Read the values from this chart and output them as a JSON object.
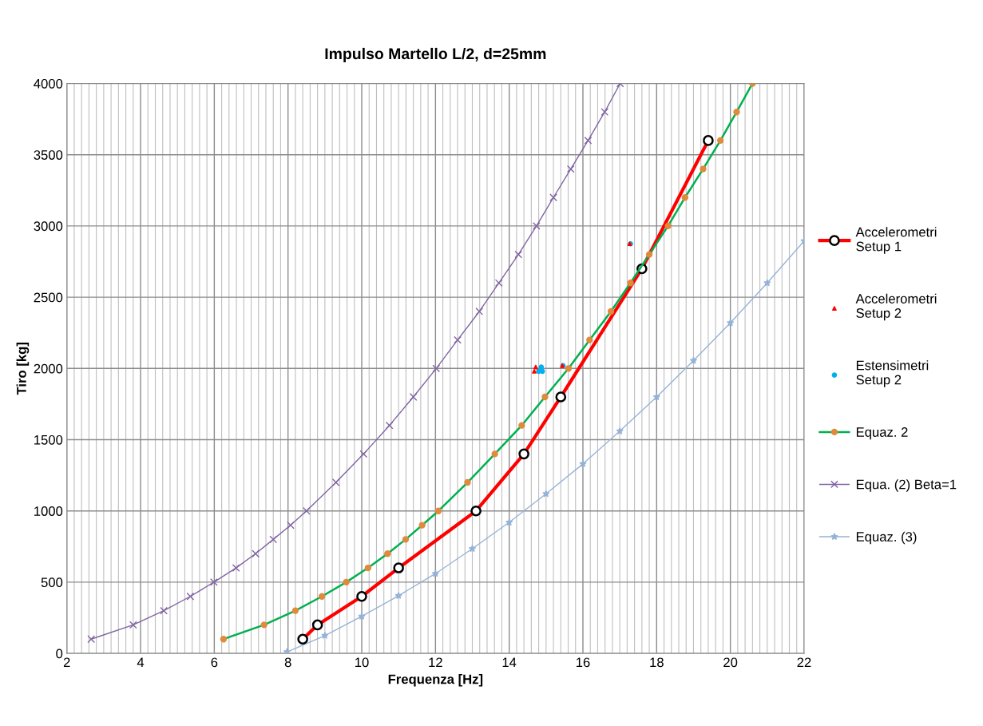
{
  "chart_data": {
    "type": "line",
    "title": "Impulso Martello L/2, d=25mm",
    "xlabel": "Frequenza [Hz]",
    "ylabel": "Tiro [kg]",
    "xlim": [
      2,
      22
    ],
    "ylim": [
      0,
      4000
    ],
    "xticks": [
      2,
      {
        "value": 2.2,
        "label": null
      },
      {
        "value": 2.4,
        "label": null
      },
      {
        "value": 2.6,
        "label": null
      },
      {
        "value": 2.8,
        "label": null
      },
      {
        "value": 3,
        "label": null
      },
      {
        "value": 3.2,
        "label": null
      },
      {
        "value": 3.4,
        "label": null
      },
      {
        "value": 3.6,
        "label": null
      },
      {
        "value": 3.8,
        "label": null
      },
      4,
      {
        "value": 4.2,
        "label": null
      },
      {
        "value": 4.4,
        "label": null
      },
      {
        "value": 4.6,
        "label": null
      },
      {
        "value": 4.8,
        "label": null
      },
      {
        "value": 5,
        "label": null
      },
      {
        "value": 5.2,
        "label": null
      },
      {
        "value": 5.4,
        "label": null
      },
      {
        "value": 5.6,
        "label": null
      },
      {
        "value": 5.8,
        "label": null
      },
      6,
      {
        "value": 6.2,
        "label": null
      },
      {
        "value": 6.4,
        "label": null
      },
      {
        "value": 6.6,
        "label": null
      },
      {
        "value": 6.8,
        "label": null
      },
      {
        "value": 7,
        "label": null
      },
      {
        "value": 7.2,
        "label": null
      },
      {
        "value": 7.4,
        "label": null
      },
      {
        "value": 7.6,
        "label": null
      },
      {
        "value": 7.8,
        "label": null
      },
      8,
      {
        "value": 8.2,
        "label": null
      },
      {
        "value": 8.4,
        "label": null
      },
      {
        "value": 8.6,
        "label": null
      },
      {
        "value": 8.8,
        "label": null
      },
      {
        "value": 9,
        "label": null
      },
      {
        "value": 9.2,
        "label": null
      },
      {
        "value": 9.4,
        "label": null
      },
      {
        "value": 9.6,
        "label": null
      },
      {
        "value": 9.8,
        "label": null
      },
      10,
      {
        "value": 10.2,
        "label": null
      },
      {
        "value": 10.4,
        "label": null
      },
      {
        "value": 10.6,
        "label": null
      },
      {
        "value": 10.8,
        "label": null
      },
      {
        "value": 11,
        "label": null
      },
      {
        "value": 11.2,
        "label": null
      },
      {
        "value": 11.4,
        "label": null
      },
      {
        "value": 11.6,
        "label": null
      },
      {
        "value": 11.8,
        "label": null
      },
      12,
      {
        "value": 12.2,
        "label": null
      },
      {
        "value": 12.4,
        "label": null
      },
      {
        "value": 12.6,
        "label": null
      },
      {
        "value": 12.8,
        "label": null
      },
      {
        "value": 13,
        "label": null
      },
      {
        "value": 13.2,
        "label": null
      },
      {
        "value": 13.4,
        "label": null
      },
      {
        "value": 13.6,
        "label": null
      },
      {
        "value": 13.8,
        "label": null
      },
      14,
      {
        "value": 14.2,
        "label": null
      },
      {
        "value": 14.4,
        "label": null
      },
      {
        "value": 14.6,
        "label": null
      },
      {
        "value": 14.8,
        "label": null
      },
      {
        "value": 15,
        "label": null
      },
      {
        "value": 15.2,
        "label": null
      },
      {
        "value": 15.4,
        "label": null
      },
      {
        "value": 15.6,
        "label": null
      },
      {
        "value": 15.8,
        "label": null
      },
      16,
      {
        "value": 16.2,
        "label": null
      },
      {
        "value": 16.4,
        "label": null
      },
      {
        "value": 16.6,
        "label": null
      },
      {
        "value": 16.8,
        "label": null
      },
      {
        "value": 17,
        "label": null
      },
      {
        "value": 17.2,
        "label": null
      },
      {
        "value": 17.4,
        "label": null
      },
      {
        "value": 17.6,
        "label": null
      },
      {
        "value": 17.8,
        "label": null
      },
      18,
      {
        "value": 18.2,
        "label": null
      },
      {
        "value": 18.4,
        "label": null
      },
      {
        "value": 18.6,
        "label": null
      },
      {
        "value": 18.8,
        "label": null
      },
      {
        "value": 19,
        "label": null
      },
      {
        "value": 19.2,
        "label": null
      },
      {
        "value": 19.4,
        "label": null
      },
      {
        "value": 19.6,
        "label": null
      },
      {
        "value": 19.8,
        "label": null
      },
      20,
      {
        "value": 20.2,
        "label": null
      },
      {
        "value": 20.4,
        "label": null
      },
      {
        "value": 20.6,
        "label": null
      },
      {
        "value": 20.8,
        "label": null
      },
      {
        "value": 21,
        "label": null
      },
      {
        "value": 21.2,
        "label": null
      },
      {
        "value": 21.4,
        "label": null
      },
      {
        "value": 21.6,
        "label": null
      },
      {
        "value": 21.8,
        "label": null
      },
      22
    ],
    "yticks": [
      0,
      500,
      1000,
      1500,
      2000,
      2500,
      3000,
      3500,
      4000
    ],
    "grid": true,
    "legend": "right",
    "series": [
      {
        "name": "Accelerometri Setup 1",
        "color": "#ff0000",
        "marker": "circle",
        "x": [
          8.4,
          8.8,
          10,
          11,
          13.1,
          14.4,
          15.4,
          17.6,
          19.4
        ],
        "values": [
          100,
          200,
          400,
          600,
          1000,
          1400,
          1800,
          2700,
          3600
        ]
      },
      {
        "name": "Accelerometri Setup 2",
        "type": "scatter",
        "color": "#ff0000",
        "marker": "triangle",
        "x": [
          14.72,
          14.68,
          15.44,
          17.27
        ],
        "values": [
          2010,
          1980,
          2020,
          2875
        ]
      },
      {
        "name": "Estensimetri Setup 2",
        "type": "scatter",
        "color": "#00b0f0",
        "marker": "circle",
        "x": [
          14.87,
          14.8,
          14.9,
          15.46,
          17.29
        ],
        "values": [
          2010,
          1980,
          1980,
          2020,
          2875
        ]
      },
      {
        "name": "Equaz. 2",
        "color": "#00b050",
        "marker": "circle",
        "x": [
          6.25,
          7.35,
          8.2,
          8.92,
          9.58,
          10.17,
          10.7,
          11.19,
          11.64,
          12.08,
          12.87,
          13.61,
          14.34,
          14.97,
          15.61,
          16.18,
          16.76,
          17.29,
          17.8,
          18.31,
          18.77,
          19.26,
          19.73,
          20.17,
          20.6
        ],
        "values": [
          100,
          200,
          300,
          400,
          500,
          600,
          700,
          800,
          900,
          1000,
          1200,
          1400,
          1600,
          1800,
          2000,
          2200,
          2400,
          2600,
          2800,
          3000,
          3200,
          3400,
          3600,
          3800,
          4000
        ]
      },
      {
        "name": "Equa. (2) Beta=1",
        "color": "#8064a2",
        "marker": "cross",
        "x": [
          2.66,
          3.8,
          4.63,
          5.35,
          5.99,
          6.59,
          7.12,
          7.6,
          8.07,
          8.5,
          9.3,
          10.05,
          10.75,
          11.4,
          12.02,
          12.6,
          13.19,
          13.72,
          14.25,
          14.74,
          15.2,
          15.67,
          16.14,
          16.59,
          17.01
        ],
        "values": [
          100,
          200,
          300,
          400,
          500,
          600,
          700,
          800,
          900,
          1000,
          1200,
          1400,
          1600,
          1800,
          2000,
          2200,
          2400,
          2600,
          2800,
          3000,
          3200,
          3400,
          3600,
          3800,
          4000
        ]
      },
      {
        "name": "Equaz. (3)",
        "color": "#95b3d7",
        "marker": "star",
        "x": [
          7.97,
          9,
          10,
          11,
          12,
          13,
          14,
          15,
          16,
          17,
          18,
          19,
          20,
          21,
          22
        ],
        "values": [
          10,
          125,
          260,
          405,
          560,
          735,
          920,
          1120,
          1330,
          1560,
          1800,
          2055,
          2320,
          2600,
          2895
        ]
      }
    ]
  }
}
